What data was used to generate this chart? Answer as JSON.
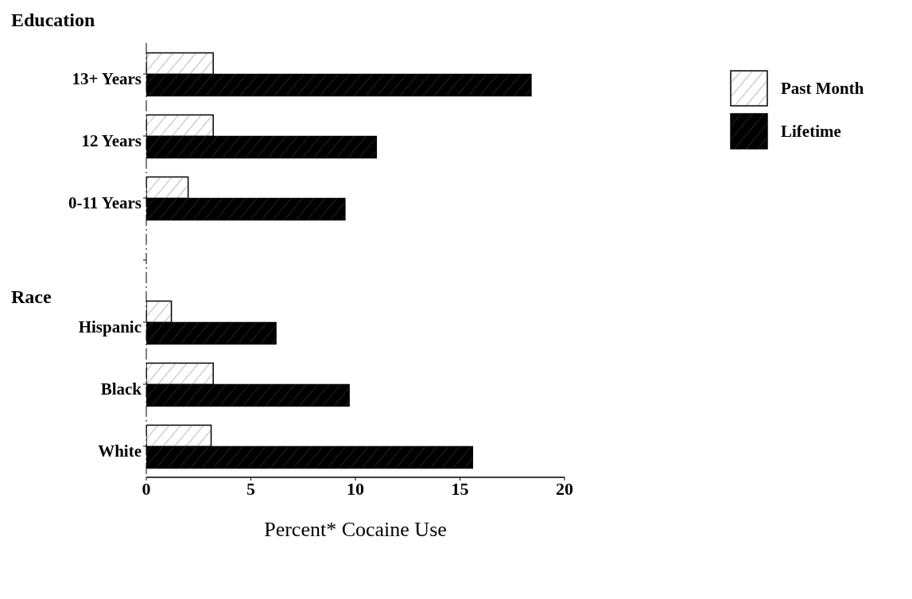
{
  "chart_data": {
    "type": "bar",
    "orientation": "horizontal",
    "xlabel": "Percent* Cocaine Use",
    "annotations": [
      "Education",
      "Race"
    ],
    "categories": [
      "13+  Years",
      "12 Years",
      "0-11 Years",
      null,
      "Hispanic",
      "Black",
      "White"
    ],
    "series": [
      {
        "name": "Past Month",
        "color": "#ffffff",
        "values": [
          3.2,
          3.2,
          2.0,
          null,
          1.2,
          3.2,
          3.1
        ]
      },
      {
        "name": "Lifetime",
        "color": "#000000",
        "values": [
          18.4,
          11.0,
          9.5,
          null,
          6.2,
          9.7,
          15.6
        ]
      }
    ],
    "xlim": [
      0,
      20
    ],
    "xticks": [
      0,
      5,
      10,
      15,
      20
    ],
    "grid": false,
    "legend": "top right"
  }
}
